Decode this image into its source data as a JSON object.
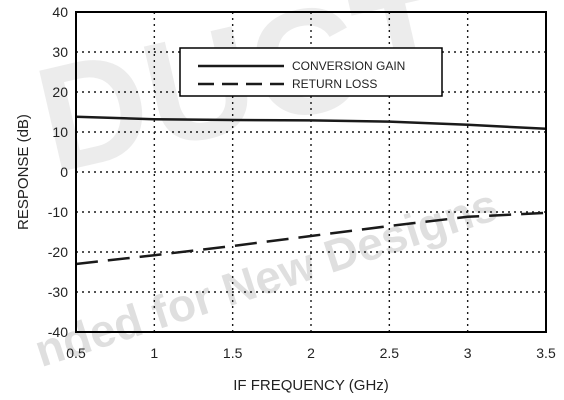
{
  "chart_data": {
    "type": "line",
    "title": "",
    "xlabel": "IF FREQUENCY (GHz)",
    "ylabel": "RESPONSE (dB)",
    "xlim": [
      0.5,
      3.5
    ],
    "ylim": [
      -40,
      40
    ],
    "x_ticks": [
      "0.5",
      "1",
      "1.5",
      "2",
      "2.5",
      "3",
      "3.5"
    ],
    "y_ticks": [
      "40",
      "30",
      "20",
      "10",
      "0",
      "-10",
      "-20",
      "-30",
      "-40"
    ],
    "x_tick_values": [
      0.5,
      1,
      1.5,
      2,
      2.5,
      3,
      3.5
    ],
    "y_tick_values": [
      40,
      30,
      20,
      10,
      0,
      -10,
      -20,
      -30,
      -40
    ],
    "grid": true,
    "legend_position": "top-right",
    "series": [
      {
        "name": "CONVERSION GAIN",
        "style": "solid",
        "x": [
          0.5,
          1.0,
          1.5,
          2.0,
          2.5,
          3.0,
          3.5
        ],
        "y": [
          13.8,
          13.2,
          13.0,
          12.9,
          12.6,
          11.8,
          10.8
        ]
      },
      {
        "name": "RETURN LOSS",
        "style": "dashed",
        "x": [
          0.5,
          1.0,
          1.5,
          2.0,
          2.5,
          3.0,
          3.5
        ],
        "y": [
          -23.0,
          -20.8,
          -18.5,
          -16.0,
          -13.5,
          -11.2,
          -10.2
        ]
      }
    ],
    "colors": {
      "line": "#1a1a1a",
      "grid": "#1a1a1a",
      "frame": "#000000"
    }
  },
  "watermark": {
    "large_text": "DUCT",
    "small_text": "nded for New Designs",
    "color": "#000000"
  }
}
